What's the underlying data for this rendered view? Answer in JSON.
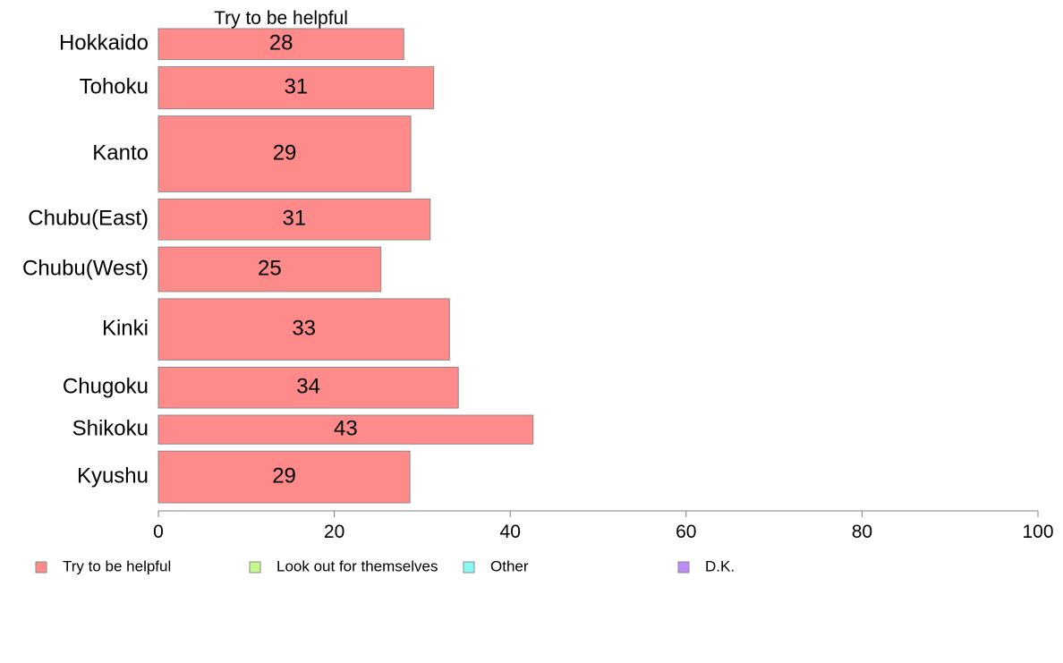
{
  "chart_data": {
    "type": "bar",
    "orientation": "horizontal",
    "stacked": true,
    "title": "Try to be helpful",
    "categories": [
      "Hokkaido",
      "Tohoku",
      "Kanto",
      "Chubu(East)",
      "Chubu(West)",
      "Kinki",
      "Chugoku",
      "Shikoku",
      "Kyushu"
    ],
    "category_weights": [
      1,
      1.36,
      2.45,
      1.32,
      1.44,
      1.98,
      1.32,
      0.93,
      1.67
    ],
    "series": [
      {
        "name": "Try to be helpful",
        "color": "#ff8a8a",
        "values": [
          27.9,
          31.3,
          28.7,
          30.9,
          25.3,
          33.1,
          34.1,
          42.6,
          28.6
        ],
        "labels": [
          "28",
          "31",
          "29",
          "31",
          "25",
          "33",
          "34",
          "43",
          "29"
        ]
      }
    ],
    "xlim": [
      0,
      100
    ],
    "x_ticks": [
      0,
      20,
      40,
      60,
      80,
      100
    ],
    "x_tick_labels": [
      "0",
      "20",
      "40",
      "60",
      "80",
      "100"
    ],
    "xlabel": "",
    "ylabel": "",
    "grid": false,
    "legend_position": "bottom",
    "legend": [
      {
        "label": "Try to be helpful",
        "color": "#ff8a8a"
      },
      {
        "label": "Look out for themselves",
        "color": "#c6f78a"
      },
      {
        "label": "Other",
        "color": "#8af7f7"
      },
      {
        "label": "D.K.",
        "color": "#bf8af7"
      }
    ]
  }
}
